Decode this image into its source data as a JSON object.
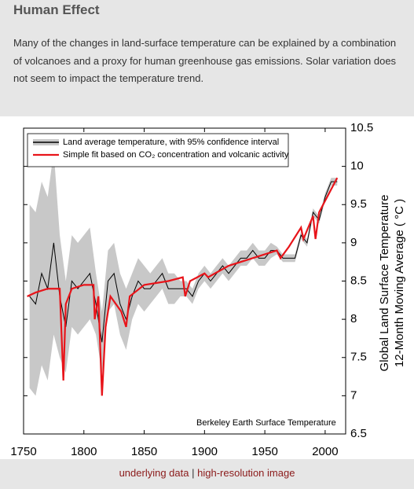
{
  "header": {
    "title": "Human Effect"
  },
  "description": "Many of the changes in land-surface temperature can be explained by a combination of volcanoes and a proxy for human greenhouse gas emissions. Solar variation does not seem to impact the temperature trend.",
  "links": {
    "items": [
      "underlying data",
      "high-resolution image"
    ],
    "separator": "|"
  },
  "chart_data": {
    "type": "line",
    "y_label": [
      "Global Land Surface Temperature",
      "12-Month Moving Average ( °C )"
    ],
    "annotation": "Berkeley Earth Surface Temperature",
    "legend_position": "upper-left",
    "xlim": [
      1750,
      2017
    ],
    "xticks": [
      1750,
      1800,
      1850,
      1900,
      1950,
      2000
    ],
    "ylim": [
      6.5,
      10.5
    ],
    "yticks": [
      6.5,
      7,
      7.5,
      8,
      8.5,
      9,
      9.5,
      10,
      10.5
    ],
    "series": [
      {
        "name": "Land average temperature, with 95% confidence interval",
        "color": "#000000",
        "band_color": "#c8c8c8",
        "x": [
          1755,
          1760,
          1765,
          1770,
          1775,
          1780,
          1785,
          1790,
          1795,
          1800,
          1805,
          1810,
          1815,
          1820,
          1825,
          1830,
          1835,
          1840,
          1845,
          1850,
          1855,
          1860,
          1865,
          1870,
          1875,
          1880,
          1885,
          1890,
          1895,
          1900,
          1905,
          1910,
          1915,
          1920,
          1925,
          1930,
          1935,
          1940,
          1945,
          1950,
          1955,
          1960,
          1965,
          1970,
          1975,
          1980,
          1985,
          1990,
          1995,
          2000,
          2005,
          2010
        ],
        "values": [
          8.3,
          8.2,
          8.6,
          8.4,
          9.0,
          8.3,
          7.9,
          8.5,
          8.4,
          8.5,
          8.6,
          8.2,
          7.7,
          8.5,
          8.6,
          8.2,
          8.0,
          8.3,
          8.5,
          8.4,
          8.4,
          8.5,
          8.6,
          8.4,
          8.4,
          8.4,
          8.4,
          8.3,
          8.5,
          8.6,
          8.5,
          8.6,
          8.7,
          8.6,
          8.7,
          8.8,
          8.8,
          8.9,
          8.8,
          8.8,
          8.9,
          8.9,
          8.8,
          8.8,
          8.8,
          9.1,
          9.0,
          9.4,
          9.3,
          9.6,
          9.8,
          9.8
        ],
        "lower": [
          7.1,
          7.0,
          7.4,
          7.2,
          7.8,
          7.5,
          7.3,
          7.9,
          7.8,
          7.9,
          8.0,
          7.8,
          7.3,
          8.1,
          8.2,
          7.8,
          7.6,
          8.0,
          8.2,
          8.1,
          8.2,
          8.3,
          8.4,
          8.2,
          8.2,
          8.3,
          8.3,
          8.2,
          8.4,
          8.5,
          8.4,
          8.5,
          8.6,
          8.5,
          8.6,
          8.7,
          8.7,
          8.8,
          8.7,
          8.7,
          8.8,
          8.85,
          8.75,
          8.75,
          8.75,
          9.05,
          8.95,
          9.35,
          9.25,
          9.55,
          9.75,
          9.75
        ],
        "upper": [
          9.5,
          9.4,
          9.8,
          9.6,
          10.2,
          9.1,
          8.5,
          9.1,
          9.0,
          9.1,
          9.2,
          8.6,
          8.1,
          8.9,
          9.0,
          8.6,
          8.4,
          8.6,
          8.8,
          8.7,
          8.6,
          8.7,
          8.8,
          8.6,
          8.6,
          8.5,
          8.5,
          8.4,
          8.6,
          8.7,
          8.6,
          8.7,
          8.8,
          8.7,
          8.8,
          8.9,
          8.9,
          9.0,
          8.9,
          8.9,
          9.0,
          8.95,
          8.85,
          8.85,
          8.85,
          9.15,
          9.05,
          9.45,
          9.35,
          9.65,
          9.85,
          9.85
        ]
      },
      {
        "name": "Simple fit based on CO₂ concentration and volcanic activity",
        "color": "#e8141a",
        "x": [
          1753,
          1760,
          1770,
          1780,
          1783,
          1785,
          1790,
          1800,
          1808,
          1809,
          1812,
          1815,
          1818,
          1822,
          1831,
          1835,
          1838,
          1850,
          1870,
          1882,
          1884,
          1888,
          1900,
          1903,
          1920,
          1940,
          1960,
          1963,
          1970,
          1980,
          1982,
          1990,
          1992,
          1995,
          2000,
          2010
        ],
        "values": [
          8.3,
          8.35,
          8.4,
          8.4,
          7.2,
          8.2,
          8.4,
          8.45,
          8.45,
          8.0,
          8.3,
          7.0,
          7.9,
          8.3,
          8.1,
          7.9,
          8.3,
          8.45,
          8.5,
          8.55,
          8.3,
          8.5,
          8.6,
          8.55,
          8.7,
          8.8,
          8.9,
          8.8,
          8.95,
          9.2,
          9.05,
          9.35,
          9.05,
          9.4,
          9.55,
          9.85
        ]
      }
    ]
  }
}
